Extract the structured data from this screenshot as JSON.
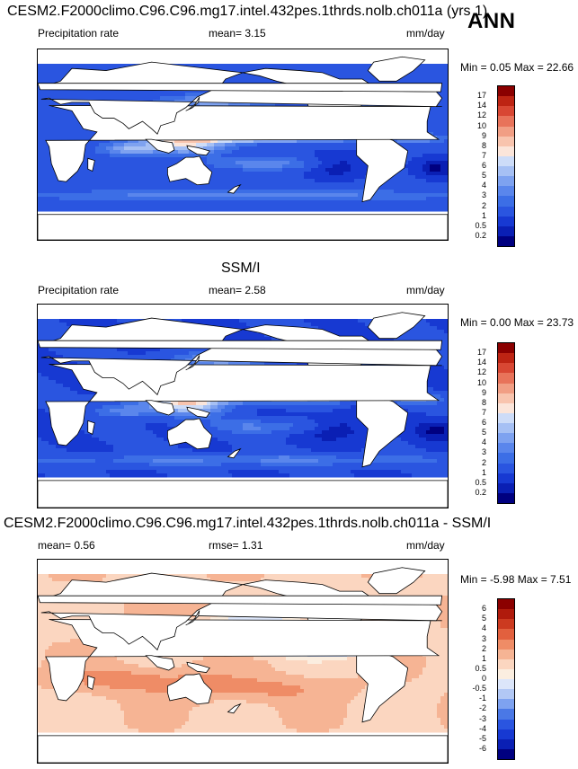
{
  "season": "ANN",
  "panels": [
    {
      "title": "CESM2.F2000climo.C96.C96.mg17.intel.432pes.1thrds.nolb.ch011a (yrs 1)",
      "left_label": "Precipitation rate",
      "stat1": "mean=  3.15",
      "stat2": "",
      "units": "mm/day",
      "minmax": "Min =   0.05 Max =  22.66"
    },
    {
      "title": "SSM/I",
      "left_label": "Precipitation rate",
      "stat1": "mean=  2.58",
      "stat2": "",
      "units": "mm/day",
      "minmax": "Min =   0.00 Max =  23.73"
    },
    {
      "title": "CESM2.F2000climo.C96.C96.mg17.intel.432pes.1thrds.nolb.ch011a - SSM/I",
      "left_label": "",
      "stat1": "mean=   0.56",
      "stat2": "rmse=   1.31",
      "units": "mm/day",
      "minmax": "Min =  -5.98 Max =   7.51"
    }
  ],
  "chart_data": [
    {
      "type": "heatmap",
      "title": "CESM2.F2000climo.C96.C96.mg17.intel.432pes.1thrds.nolb.ch011a (yrs 1)",
      "field": "Precipitation rate",
      "units": "mm/day",
      "mean": 3.15,
      "min": 0.05,
      "max": 22.66,
      "contour_levels": [
        0.2,
        0.5,
        1,
        2,
        3,
        4,
        5,
        6,
        7,
        8,
        9,
        10,
        12,
        14,
        17
      ],
      "colors": [
        "#000080",
        "#0a1fb4",
        "#1739d2",
        "#2a55e0",
        "#3c6ee6",
        "#5a86ec",
        "#7ea2f0",
        "#a6c0f4",
        "#cddcf8",
        "#fbe5da",
        "#f8c4ae",
        "#f19e84",
        "#e8735a",
        "#d84733",
        "#bd2413",
        "#8b0000"
      ]
    },
    {
      "type": "heatmap",
      "title": "SSM/I",
      "field": "Precipitation rate",
      "units": "mm/day",
      "mean": 2.58,
      "min": 0.0,
      "max": 23.73,
      "contour_levels": [
        0.2,
        0.5,
        1,
        2,
        3,
        4,
        5,
        6,
        7,
        8,
        9,
        10,
        12,
        14,
        17
      ],
      "colors": [
        "#000080",
        "#0a1fb4",
        "#1739d2",
        "#2a55e0",
        "#3c6ee6",
        "#5a86ec",
        "#7ea2f0",
        "#a6c0f4",
        "#cddcf8",
        "#fbe5da",
        "#f8c4ae",
        "#f19e84",
        "#e8735a",
        "#d84733",
        "#bd2413",
        "#8b0000"
      ]
    },
    {
      "type": "heatmap",
      "title": "CESM2.F2000climo.C96.C96.mg17.intel.432pes.1thrds.nolb.ch011a - SSM/I",
      "units": "mm/day",
      "mean": 0.56,
      "rmse": 1.31,
      "min": -5.98,
      "max": 7.51,
      "contour_levels": [
        -6,
        -5,
        -4,
        -3,
        -2,
        -1,
        -0.5,
        0,
        0.5,
        1,
        2,
        3,
        4,
        5,
        6
      ],
      "colors": [
        "#000080",
        "#0a1fb4",
        "#1739d2",
        "#2a55e0",
        "#4a78e6",
        "#7ea2f0",
        "#b2c8f5",
        "#dce6fa",
        "#fbeee0",
        "#fbd6c0",
        "#f6b494",
        "#ef8c66",
        "#e2603e",
        "#cc3a20",
        "#b01b0c",
        "#8b0000"
      ]
    }
  ]
}
